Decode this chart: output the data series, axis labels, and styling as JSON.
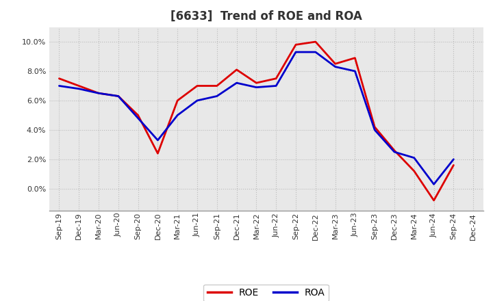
{
  "title": "[6633]  Trend of ROE and ROA",
  "labels": [
    "Sep-19",
    "Dec-19",
    "Mar-20",
    "Jun-20",
    "Sep-20",
    "Dec-20",
    "Mar-21",
    "Jun-21",
    "Sep-21",
    "Dec-21",
    "Mar-22",
    "Jun-22",
    "Sep-22",
    "Dec-22",
    "Mar-23",
    "Jun-23",
    "Sep-23",
    "Dec-23",
    "Mar-24",
    "Jun-24",
    "Sep-24",
    "Dec-24"
  ],
  "ROE": [
    7.5,
    7.0,
    6.5,
    6.3,
    5.0,
    2.4,
    6.0,
    7.0,
    7.0,
    8.1,
    7.2,
    7.5,
    9.8,
    10.0,
    8.5,
    8.9,
    4.2,
    2.6,
    1.2,
    -0.8,
    1.6,
    null
  ],
  "ROA": [
    7.0,
    6.8,
    6.5,
    6.3,
    4.8,
    3.3,
    5.0,
    6.0,
    6.3,
    7.2,
    6.9,
    7.0,
    9.3,
    9.3,
    8.3,
    8.0,
    4.0,
    2.5,
    2.1,
    0.3,
    2.0,
    null
  ],
  "roe_color": "#dd0000",
  "roa_color": "#0000cc",
  "bg_color": "#ffffff",
  "plot_bg_color": "#e8e8e8",
  "grid_color": "#bbbbbb",
  "ylim": [
    -1.5,
    11.0
  ],
  "yticks": [
    0.0,
    2.0,
    4.0,
    6.0,
    8.0,
    10.0
  ],
  "title_fontsize": 12,
  "title_color": "#333333",
  "tick_fontsize": 8,
  "legend_fontsize": 10,
  "linewidth": 2.0
}
